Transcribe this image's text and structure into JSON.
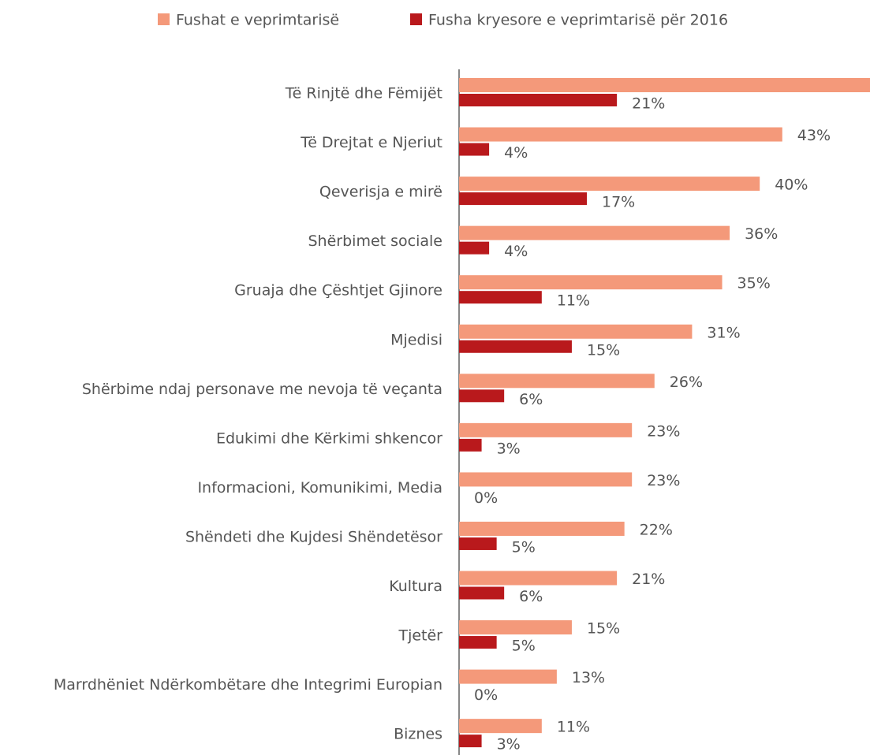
{
  "chart_data": {
    "type": "bar",
    "orientation": "horizontal",
    "categories": [
      "Të Rinjtë dhe Fëmijët",
      "Të Drejtat e Njeriut",
      "Qeverisja e mirë",
      "Shërbimet sociale",
      "Gruaja dhe Çështjet Gjinore",
      "Mjedisi",
      "Shërbime ndaj personave me nevoja të veçanta",
      "Edukimi dhe Kërkimi shkencor",
      "Informacioni, Komunikimi, Media",
      "Shëndeti dhe Kujdesi Shëndetësor",
      "Kultura",
      "Tjetër",
      "Marrdhëniet Ndërkombëtare dhe Integrimi Europian",
      "Biznes"
    ],
    "series": [
      {
        "name": "Fushat e veprimtarisë",
        "color": "#f4997a",
        "values": [
          55,
          43,
          40,
          36,
          35,
          31,
          26,
          23,
          23,
          22,
          21,
          15,
          13,
          11
        ],
        "value_labels": [
          null,
          "43%",
          "40%",
          "36%",
          "35%",
          "31%",
          "26%",
          "23%",
          "23%",
          "22%",
          "21%",
          "15%",
          "13%",
          "11%"
        ]
      },
      {
        "name": "Fusha kryesore e veprimtarisë për 2016",
        "color": "#b9191c",
        "values": [
          21,
          4,
          17,
          4,
          11,
          15,
          6,
          3,
          0,
          5,
          6,
          5,
          0,
          3
        ],
        "value_labels": [
          "21%",
          "4%",
          "17%",
          "4%",
          "11%",
          "15%",
          "6%",
          "3%",
          "0%",
          "5%",
          "6%",
          "5%",
          "0%",
          "3%"
        ]
      }
    ],
    "legend": "top"
  }
}
